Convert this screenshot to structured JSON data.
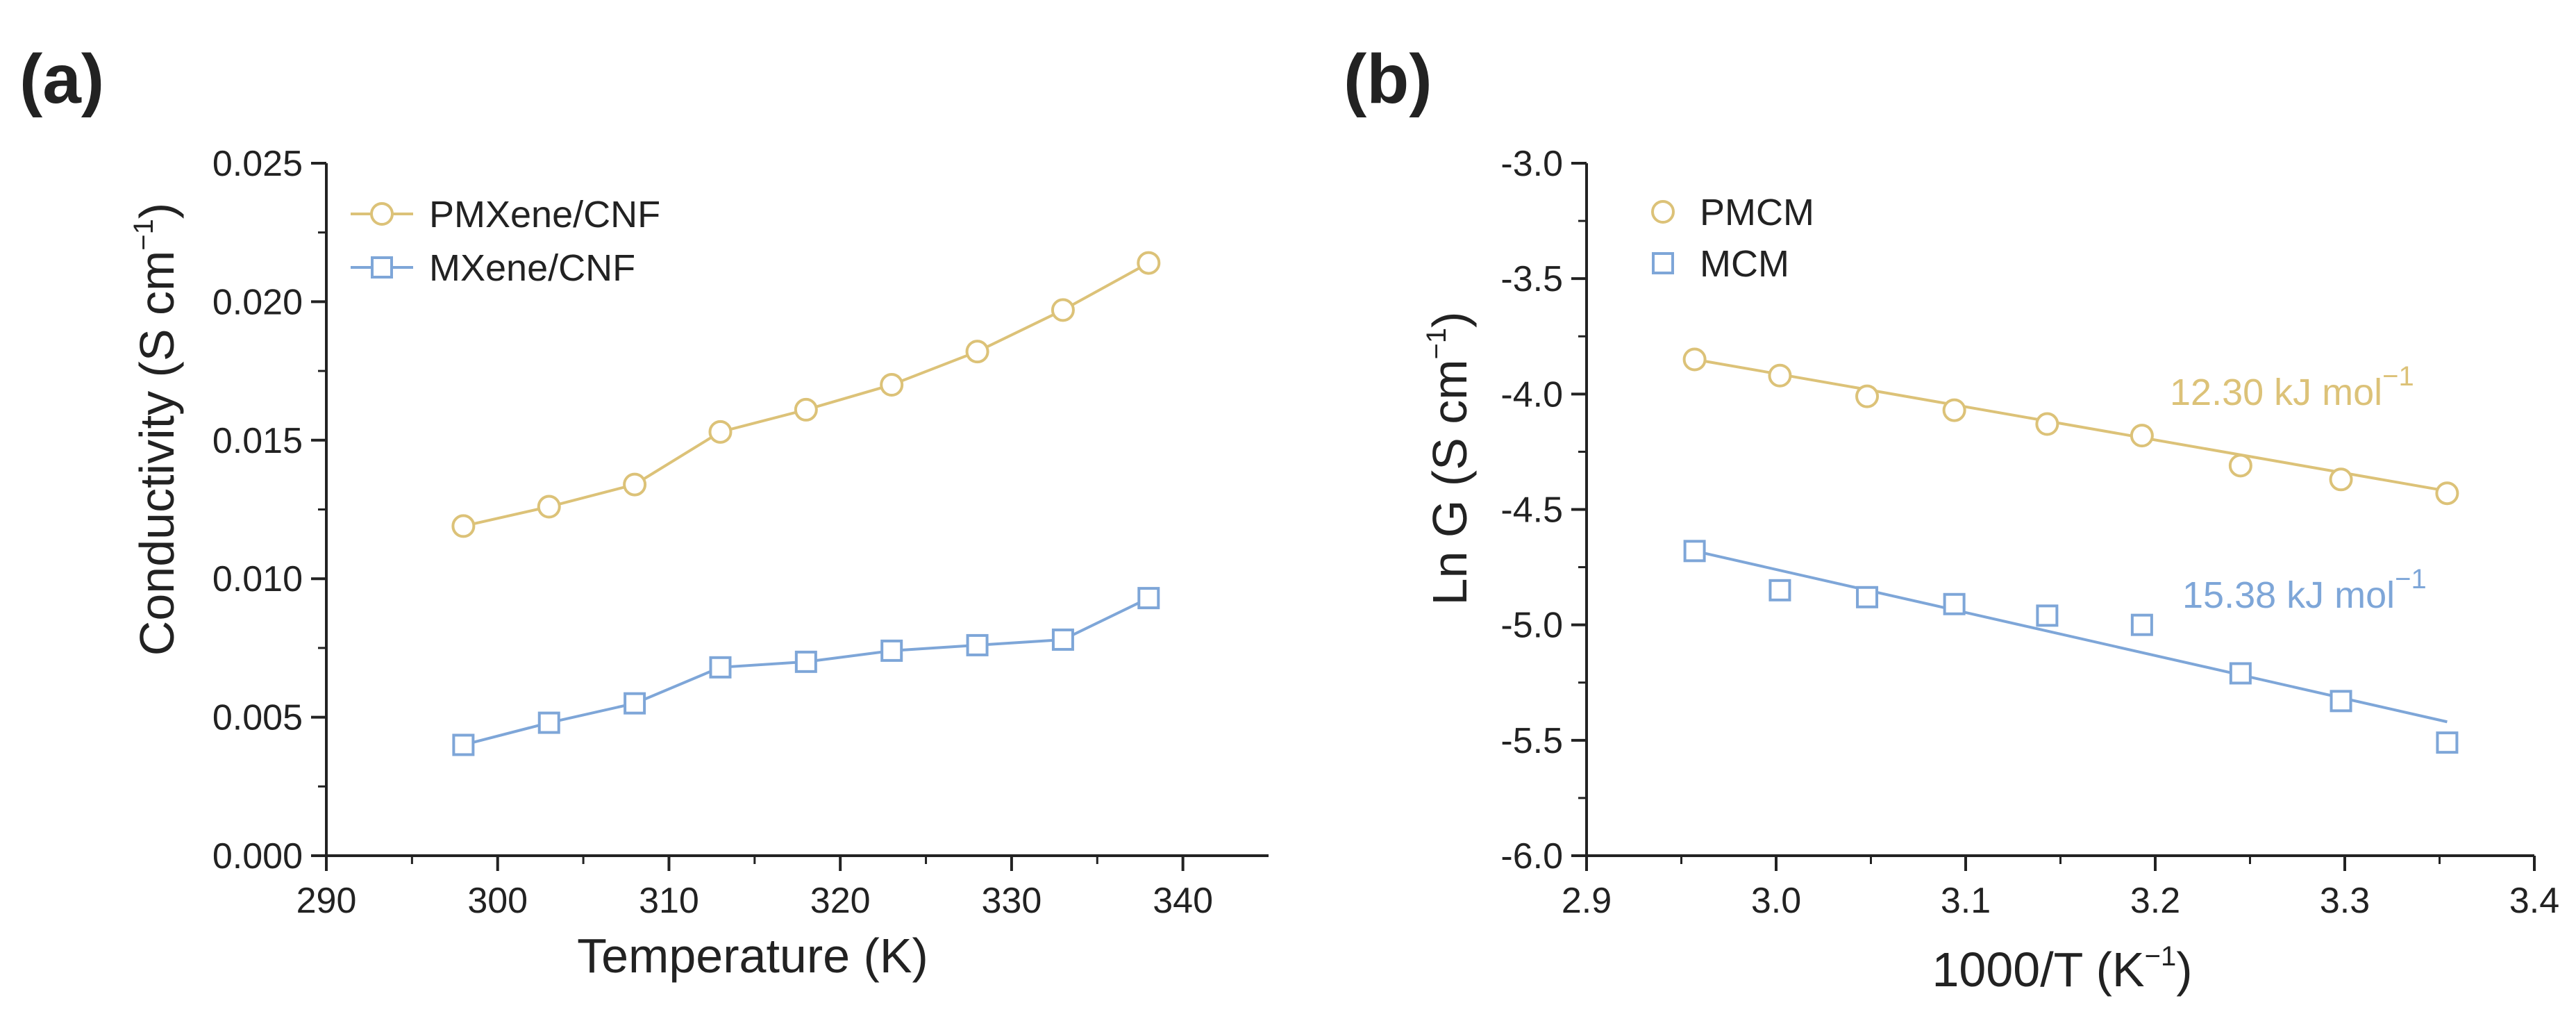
{
  "chart_data": [
    {
      "panel": "(a)",
      "type": "line",
      "xlabel": "Temperature (K)",
      "ylabel_main": "Conductivity (S cm",
      "ylabel_sup": "−1",
      "ylabel_close": ")",
      "xlim": [
        290,
        345
      ],
      "ylim": [
        0.0,
        0.025
      ],
      "xticks": [
        290,
        300,
        310,
        320,
        330,
        340
      ],
      "xtick_labels": [
        "290",
        "300",
        "310",
        "320",
        "330",
        "340"
      ],
      "yticks": [
        0.0,
        0.005,
        0.01,
        0.015,
        0.02,
        0.025
      ],
      "ytick_labels": [
        "0.000",
        "0.005",
        "0.010",
        "0.015",
        "0.020",
        "0.025"
      ],
      "legend_position": "top-left",
      "series": [
        {
          "name": "PMXene/CNF",
          "color": "#dcc278",
          "marker": "circle",
          "line": "connect",
          "x": [
            298,
            303,
            308,
            313,
            318,
            323,
            328,
            333,
            338
          ],
          "y": [
            0.0119,
            0.0126,
            0.0134,
            0.0153,
            0.0161,
            0.017,
            0.0182,
            0.0197,
            0.0214
          ]
        },
        {
          "name": "MXene/CNF",
          "color": "#7ea6d8",
          "marker": "square",
          "line": "connect",
          "x": [
            298,
            303,
            308,
            313,
            318,
            323,
            328,
            333,
            338
          ],
          "y": [
            0.004,
            0.0048,
            0.0055,
            0.0068,
            0.007,
            0.0074,
            0.0076,
            0.0078,
            0.0093
          ]
        }
      ]
    },
    {
      "panel": "(b)",
      "type": "scatter",
      "xlabel_main": "1000/T (K",
      "xlabel_sup": "−1",
      "xlabel_close": ")",
      "ylabel_main": "Ln G (S cm",
      "ylabel_sup": "−1",
      "ylabel_close": ")",
      "xlim": [
        2.9,
        3.4
      ],
      "ylim": [
        -6.0,
        -3.0
      ],
      "xticks": [
        2.9,
        3.0,
        3.1,
        3.2,
        3.3,
        3.4
      ],
      "xtick_labels": [
        "2.9",
        "3.0",
        "3.1",
        "3.2",
        "3.3",
        "3.4"
      ],
      "yticks": [
        -3.0,
        -3.5,
        -4.0,
        -4.5,
        -5.0,
        -5.5,
        -6.0
      ],
      "ytick_labels": [
        "-3.0",
        "-3.5",
        "-4.0",
        "-4.5",
        "-5.0",
        "-5.5",
        "-6.0"
      ],
      "legend_position": "top-left",
      "series": [
        {
          "name": "PMCM",
          "color": "#dcc278",
          "marker": "circle",
          "x": [
            2.957,
            3.002,
            3.048,
            3.094,
            3.143,
            3.193,
            3.245,
            3.298,
            3.354
          ],
          "y": [
            -3.85,
            -3.92,
            -4.01,
            -4.07,
            -4.13,
            -4.18,
            -4.31,
            -4.37,
            -4.43
          ],
          "fit": {
            "x": [
              2.957,
              3.354
            ],
            "y": [
              -3.85,
              -4.42
            ]
          },
          "annotation": {
            "main": "12.30 kJ mol",
            "sup": "−1"
          }
        },
        {
          "name": "MCM",
          "color": "#7ea6d8",
          "marker": "square",
          "x": [
            2.957,
            3.002,
            3.048,
            3.094,
            3.143,
            3.193,
            3.245,
            3.298,
            3.354
          ],
          "y": [
            -4.68,
            -4.85,
            -4.88,
            -4.91,
            -4.96,
            -5.0,
            -5.21,
            -5.33,
            -5.51
          ],
          "fit": {
            "x": [
              2.957,
              3.354
            ],
            "y": [
              -4.68,
              -5.42
            ]
          },
          "annotation": {
            "main": "15.38 kJ mol",
            "sup": "−1"
          }
        }
      ]
    }
  ]
}
